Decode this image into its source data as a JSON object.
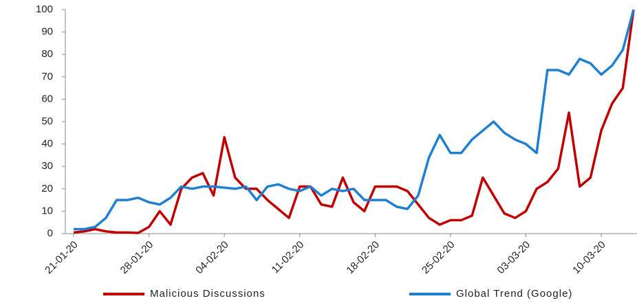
{
  "chart_data": {
    "type": "line",
    "categories": [
      "21-01-20",
      null,
      null,
      null,
      null,
      null,
      null,
      "28-01-20",
      null,
      null,
      null,
      null,
      null,
      null,
      "04-02-20",
      null,
      null,
      null,
      null,
      null,
      null,
      "11-02-20",
      null,
      null,
      null,
      null,
      null,
      null,
      "18-02-20",
      null,
      null,
      null,
      null,
      null,
      null,
      "25-02-20",
      null,
      null,
      null,
      null,
      null,
      null,
      "03-03-20",
      null,
      null,
      null,
      null,
      null,
      null,
      "10-03-20",
      null,
      null,
      null
    ],
    "series": [
      {
        "name": "Malicious Discussions",
        "color": "#c00000",
        "values": [
          0.5,
          1,
          2,
          1,
          0.5,
          0.5,
          0.3,
          3,
          10,
          4,
          20,
          25,
          27,
          17,
          43,
          25,
          20,
          20,
          15,
          11,
          7,
          21,
          21,
          13,
          12,
          25,
          14,
          10,
          21,
          21,
          21,
          19,
          13,
          7,
          4,
          6,
          6,
          8,
          25,
          17,
          9,
          7,
          10,
          20,
          23,
          29,
          54,
          21,
          25,
          46,
          58,
          65,
          100
        ]
      },
      {
        "name": "Global Trend (Google)",
        "color": "#1f7fd0",
        "values": [
          2,
          2,
          3,
          7,
          15,
          15,
          16,
          14,
          13,
          16,
          21,
          20,
          21,
          21,
          20.5,
          20,
          21,
          15,
          21,
          22,
          20,
          19,
          21,
          17,
          20,
          19,
          20,
          15,
          15,
          15,
          12,
          11,
          17,
          34,
          44,
          36,
          36,
          42,
          46,
          50,
          45,
          42,
          40,
          36,
          73,
          73,
          71,
          78,
          76,
          71,
          75,
          82,
          100
        ]
      }
    ],
    "ylim": [
      0,
      100
    ],
    "yticks": [
      0,
      10,
      20,
      30,
      40,
      50,
      60,
      70,
      80,
      90,
      100
    ],
    "legend": "bottom"
  }
}
